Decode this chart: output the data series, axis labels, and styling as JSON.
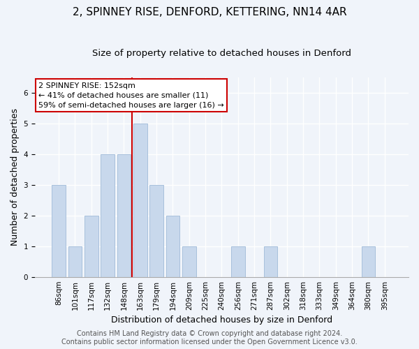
{
  "title": "2, SPINNEY RISE, DENFORD, KETTERING, NN14 4AR",
  "subtitle": "Size of property relative to detached houses in Denford",
  "xlabel": "Distribution of detached houses by size in Denford",
  "ylabel": "Number of detached properties",
  "categories": [
    "86sqm",
    "101sqm",
    "117sqm",
    "132sqm",
    "148sqm",
    "163sqm",
    "179sqm",
    "194sqm",
    "209sqm",
    "225sqm",
    "240sqm",
    "256sqm",
    "271sqm",
    "287sqm",
    "302sqm",
    "318sqm",
    "333sqm",
    "349sqm",
    "364sqm",
    "380sqm",
    "395sqm"
  ],
  "values": [
    3,
    1,
    2,
    4,
    4,
    5,
    3,
    2,
    1,
    0,
    0,
    1,
    0,
    1,
    0,
    0,
    0,
    0,
    0,
    1,
    0
  ],
  "bar_color": "#c8d8ec",
  "bar_edge_color": "#a8c0dc",
  "vline_x_index": 4.5,
  "vline_color": "#cc0000",
  "annotation_text": "2 SPINNEY RISE: 152sqm\n← 41% of detached houses are smaller (11)\n59% of semi-detached houses are larger (16) →",
  "annotation_box_facecolor": "#ffffff",
  "annotation_box_edge_color": "#cc0000",
  "ylim": [
    0,
    6.5
  ],
  "yticks": [
    0,
    1,
    2,
    3,
    4,
    5,
    6
  ],
  "footer_text": "Contains HM Land Registry data © Crown copyright and database right 2024.\nContains public sector information licensed under the Open Government Licence v3.0.",
  "background_color": "#f0f4fa",
  "plot_bg_color": "#f0f4fa",
  "title_fontsize": 11,
  "subtitle_fontsize": 9.5,
  "axis_label_fontsize": 9,
  "tick_fontsize": 7.5,
  "annotation_fontsize": 8,
  "footer_fontsize": 7
}
